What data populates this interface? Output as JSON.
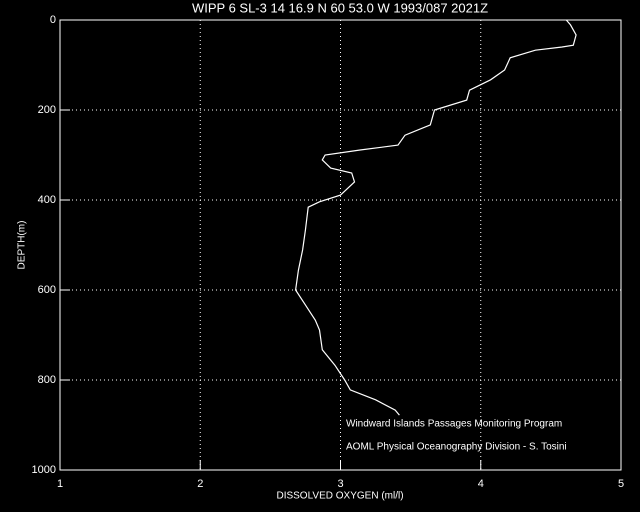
{
  "chart_data": {
    "type": "line",
    "title": "WIPP 6 SL-3  14 16.9 N  60 53.0 W  1993/087 2021Z",
    "xlabel": "DISSOLVED OXYGEN (ml/l)",
    "ylabel": "DEPTH(m)",
    "annotations": [
      "Windward Islands Passages Monitoring Program",
      "AOML Physical Oceanography Division - S. Tosini"
    ],
    "x": [
      4.61,
      4.64,
      4.68,
      4.66,
      4.58,
      4.39,
      4.21,
      4.17,
      4.07,
      3.92,
      3.9,
      3.67,
      3.64,
      3.46,
      3.41,
      3.14,
      2.89,
      2.87,
      2.93,
      3.08,
      3.1,
      3.0,
      2.85,
      2.77,
      2.75,
      2.73,
      2.7,
      2.68,
      2.75,
      2.82,
      2.85,
      2.87,
      2.96,
      3.03,
      3.07,
      3.25,
      3.39,
      3.42
    ],
    "values": [
      0,
      11,
      33,
      56,
      60,
      67,
      84,
      111,
      133,
      156,
      178,
      200,
      233,
      256,
      278,
      289,
      300,
      311,
      329,
      340,
      360,
      389,
      404,
      416,
      467,
      511,
      556,
      600,
      633,
      667,
      689,
      733,
      767,
      800,
      822,
      844,
      867,
      878
    ],
    "color": "#ffffff",
    "xlim": [
      1,
      5
    ],
    "xticks": [
      1,
      2,
      3,
      4,
      5
    ],
    "ylim": [
      0,
      1000
    ],
    "yticks": [
      0,
      200,
      400,
      600,
      800,
      1000
    ],
    "y_inverted": true,
    "grid": true
  }
}
